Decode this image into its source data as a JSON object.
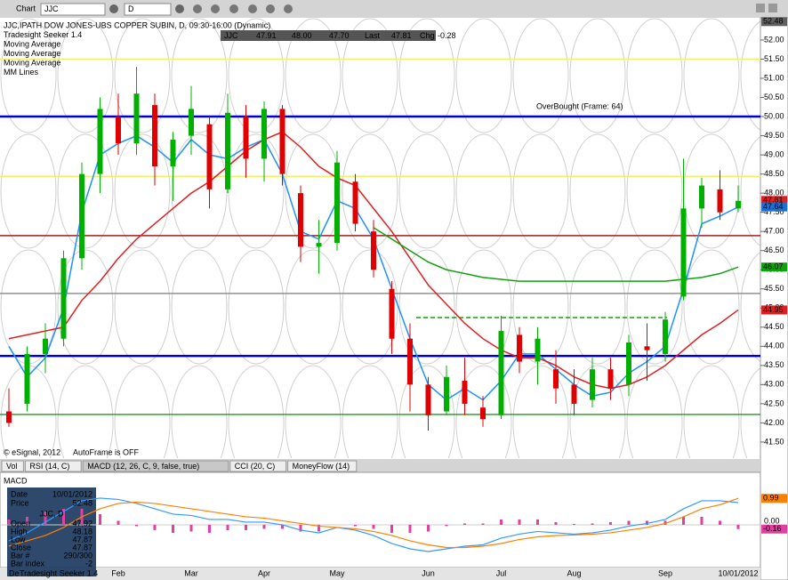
{
  "toolbar": {
    "title": "Chart",
    "symbol": "JJC",
    "interval": "D"
  },
  "header": {
    "lines": [
      "JJC,IPATH DOW JONES-UBS COPPER SUBIN, D, 09:30-16:00 (Dynamic)",
      "Tradesight Seeker 1.4",
      "Moving Average",
      "Moving Average",
      "Moving Average",
      "MM Lines"
    ],
    "quote": [
      "JJC",
      "47.91",
      "48.00",
      "47.70",
      "Last",
      "47.81",
      "Chg",
      "-0.28"
    ]
  },
  "chart_data": [
    {
      "type": "candlestick",
      "categories": [
        "De",
        null,
        null,
        null,
        null,
        null,
        "Feb",
        null,
        null,
        null,
        "Mar",
        null,
        null,
        null,
        "Apr",
        null,
        null,
        null,
        "May",
        null,
        null,
        null,
        null,
        "Jun",
        null,
        null,
        null,
        "Jul",
        null,
        null,
        null,
        "Aug",
        null,
        null,
        null,
        null,
        "Sep",
        null,
        null,
        null,
        "10/01/2012"
      ],
      "open": [
        42.3,
        42.5,
        43.8,
        44.2,
        46.3,
        48.5,
        50.0,
        49.3,
        50.3,
        48.7,
        49.5,
        49.8,
        48.1,
        50.0,
        48.9,
        50.2,
        48.0,
        46.6,
        46.7,
        48.3,
        47.0,
        45.5,
        44.2,
        43.0,
        42.3,
        43.1,
        42.4,
        42.2,
        44.3,
        43.6,
        43.4,
        43.0,
        42.6,
        43.4,
        43.0,
        44.0,
        43.8,
        45.3,
        47.6,
        48.1,
        47.6
      ],
      "high": [
        42.9,
        44.0,
        44.6,
        46.5,
        48.8,
        50.5,
        50.6,
        51.3,
        50.6,
        49.6,
        50.8,
        50.0,
        50.6,
        50.3,
        50.4,
        50.3,
        48.2,
        47.3,
        49.1,
        48.5,
        47.3,
        45.7,
        44.6,
        43.2,
        43.5,
        43.7,
        42.7,
        44.8,
        44.5,
        44.5,
        43.9,
        43.4,
        43.7,
        43.7,
        44.3,
        44.6,
        44.9,
        48.9,
        48.4,
        48.6,
        48.2
      ],
      "low": [
        41.9,
        42.3,
        43.3,
        44.0,
        46.0,
        48.0,
        49.0,
        49.0,
        48.2,
        47.8,
        49.0,
        47.6,
        48.0,
        48.4,
        48.3,
        48.2,
        46.2,
        45.9,
        46.5,
        47.0,
        45.8,
        43.8,
        42.3,
        41.8,
        42.2,
        42.2,
        41.9,
        42.1,
        43.3,
        43.0,
        42.5,
        42.2,
        42.4,
        42.6,
        42.7,
        43.1,
        43.6,
        45.2,
        47.1,
        47.3,
        47.5
      ],
      "close": [
        42.0,
        43.8,
        44.2,
        46.3,
        48.5,
        50.2,
        49.3,
        50.6,
        48.7,
        49.4,
        50.2,
        48.1,
        50.1,
        48.9,
        50.2,
        48.5,
        46.6,
        46.7,
        48.8,
        47.2,
        46.0,
        44.2,
        43.0,
        42.2,
        43.2,
        42.5,
        42.1,
        44.4,
        43.6,
        44.2,
        42.9,
        42.5,
        43.4,
        42.9,
        44.1,
        43.9,
        44.7,
        47.6,
        48.2,
        47.5,
        47.8
      ],
      "up_color": "#00b000",
      "down_color": "#e00000",
      "series": [
        {
          "name": "Moving Average",
          "color": "#1e90ff",
          "values": [
            44.0,
            43.2,
            43.7,
            45.0,
            47.5,
            49.0,
            49.3,
            49.5,
            49.2,
            48.8,
            49.4,
            49.0,
            48.9,
            49.2,
            49.4,
            48.5,
            47.0,
            46.8,
            47.8,
            47.6,
            46.8,
            45.5,
            44.2,
            43.0,
            42.6,
            42.9,
            42.6,
            43.1,
            43.8,
            43.8,
            43.4,
            43.0,
            42.7,
            42.8,
            43.3,
            43.6,
            44.0,
            45.5,
            47.2,
            47.4,
            47.64
          ]
        },
        {
          "name": "Moving Average",
          "color": "#e02020",
          "values": [
            44.2,
            44.3,
            44.4,
            44.5,
            45.2,
            45.7,
            46.3,
            46.8,
            47.2,
            47.6,
            48.0,
            48.3,
            48.7,
            49.1,
            49.4,
            49.6,
            49.2,
            48.7,
            48.4,
            48.2,
            47.6,
            47.0,
            46.3,
            45.6,
            45.1,
            44.6,
            44.2,
            43.9,
            43.7,
            43.7,
            43.5,
            43.2,
            43.0,
            42.9,
            43.0,
            43.2,
            43.5,
            43.9,
            44.3,
            44.6,
            44.95
          ]
        },
        {
          "name": "Moving Average",
          "color": "#10a010",
          "values": [
            null,
            null,
            null,
            null,
            null,
            null,
            null,
            null,
            null,
            null,
            null,
            null,
            null,
            null,
            null,
            null,
            null,
            null,
            null,
            null,
            47.1,
            46.8,
            46.5,
            46.2,
            46.0,
            45.9,
            45.8,
            45.75,
            45.7,
            45.7,
            45.7,
            45.7,
            45.7,
            45.7,
            45.7,
            45.7,
            45.7,
            45.75,
            45.8,
            45.9,
            46.07
          ]
        }
      ],
      "levels": [
        {
          "value": 51.5,
          "color": "#f0f060",
          "dashed": false
        },
        {
          "value": 50.0,
          "color": "#0000cc",
          "dashed": false
        },
        {
          "value": 48.44,
          "color": "#f0f060",
          "dashed": false
        },
        {
          "value": 46.89,
          "color": "#a02020",
          "dashed": false
        },
        {
          "value": 45.38,
          "color": "#909090",
          "dashed": false
        },
        {
          "value": 44.75,
          "color": "#10a010",
          "dashed": true
        },
        {
          "value": 43.75,
          "color": "#0000cc",
          "dashed": false
        },
        {
          "value": 42.22,
          "color": "#30a030",
          "dashed": false
        }
      ],
      "annotation": "OverBought (Frame: 64)",
      "ylim": [
        41.08,
        52.58
      ],
      "yticks": [
        {
          "value": 41.5,
          "label": "41.50"
        },
        {
          "value": 42,
          "label": "42.00"
        },
        {
          "value": 42.5,
          "label": "42.50"
        },
        {
          "value": 43,
          "label": "43.00"
        },
        {
          "value": 43.5,
          "label": "43.50"
        },
        {
          "value": 44,
          "label": "44.00"
        },
        {
          "value": 44.5,
          "label": "44.50"
        },
        {
          "value": 45,
          "label": "45.00"
        },
        {
          "value": 45.5,
          "label": "45.50"
        },
        {
          "value": 46,
          "label": "46.00"
        },
        {
          "value": 46.5,
          "label": "46.50"
        },
        {
          "value": 47,
          "label": "47.00"
        },
        {
          "value": 47.5,
          "label": "47.50"
        },
        {
          "value": 48,
          "label": "48.00"
        },
        {
          "value": 48.5,
          "label": "48.50"
        },
        {
          "value": 49,
          "label": "49.00"
        },
        {
          "value": 49.5,
          "label": "49.50"
        },
        {
          "value": 50,
          "label": "50.00"
        },
        {
          "value": 50.5,
          "label": "50.50"
        },
        {
          "value": 51,
          "label": "51.00"
        },
        {
          "value": 51.5,
          "label": "51.50"
        },
        {
          "value": 52,
          "label": "52.00"
        }
      ],
      "price_tags": [
        {
          "value": 52.48,
          "color": "#606060"
        },
        {
          "value": 47.81,
          "color": "#e02020"
        },
        {
          "value": 47.64,
          "color": "#1e70d0"
        },
        {
          "value": 46.07,
          "color": "#10a010"
        },
        {
          "value": 44.95,
          "color": "#e02020"
        }
      ],
      "notes": [
        "© eSignal, 2012",
        "AutoFrame is OFF"
      ]
    },
    {
      "type": "macd",
      "title": "MACD",
      "series": [
        {
          "name": "MACD",
          "color": "#3399ff",
          "values": [
            -0.6,
            -0.3,
            0.1,
            0.5,
            0.9,
            1.0,
            0.95,
            0.8,
            0.6,
            0.4,
            0.35,
            0.2,
            0.2,
            0.1,
            0.1,
            0.0,
            -0.2,
            -0.3,
            -0.1,
            -0.2,
            -0.4,
            -0.7,
            -0.9,
            -1.0,
            -0.9,
            -0.8,
            -0.75,
            -0.5,
            -0.35,
            -0.25,
            -0.3,
            -0.35,
            -0.3,
            -0.2,
            -0.05,
            0.05,
            0.2,
            0.6,
            0.9,
            0.9,
            0.83
          ]
        },
        {
          "name": "Signal",
          "color": "#ff8000",
          "values": [
            -0.8,
            -0.6,
            -0.4,
            -0.1,
            0.3,
            0.6,
            0.8,
            0.85,
            0.8,
            0.7,
            0.6,
            0.5,
            0.4,
            0.3,
            0.25,
            0.15,
            0.05,
            -0.05,
            -0.1,
            -0.15,
            -0.25,
            -0.4,
            -0.6,
            -0.75,
            -0.85,
            -0.85,
            -0.8,
            -0.7,
            -0.55,
            -0.45,
            -0.4,
            -0.38,
            -0.35,
            -0.3,
            -0.2,
            -0.1,
            0.05,
            0.3,
            0.6,
            0.75,
            0.99
          ]
        }
      ],
      "histogram": {
        "color": "#e040a0",
        "values": [
          0.2,
          0.3,
          0.5,
          0.6,
          0.6,
          0.4,
          0.15,
          -0.05,
          -0.2,
          -0.3,
          -0.25,
          -0.3,
          -0.2,
          -0.2,
          -0.15,
          -0.15,
          -0.25,
          -0.25,
          0.0,
          -0.05,
          -0.15,
          -0.3,
          -0.3,
          -0.25,
          -0.05,
          0.05,
          0.05,
          0.2,
          0.2,
          0.2,
          0.1,
          0.03,
          0.05,
          0.1,
          0.15,
          0.15,
          0.15,
          0.3,
          0.3,
          0.15,
          -0.16
        ]
      },
      "ylim": [
        -1.6,
        1.93
      ],
      "yticks": [
        {
          "value": 0,
          "label": "0.00"
        }
      ],
      "price_tags": [
        {
          "value": 0.99,
          "color": "#ff8000"
        },
        {
          "value": -0.16,
          "color": "#e040a0"
        }
      ]
    }
  ],
  "tabs": [
    "Vol",
    "RSI (14, C)",
    "MACD (12, 26, C, 9, false, true)",
    "CCI (20, C)",
    "MoneyFlow (14)"
  ],
  "data_window": {
    "rows": [
      [
        "Date",
        "10/01/2012"
      ],
      [
        "Price",
        "52.48"
      ]
    ],
    "symbol": "JJC, D",
    "ohlc": [
      [
        "Open",
        "47.92"
      ],
      [
        "High",
        "48.18"
      ],
      [
        "Low",
        "47.87"
      ],
      [
        "Close",
        "47.87"
      ],
      [
        "Bar #",
        "290/300"
      ],
      [
        "Bar index",
        "-2"
      ]
    ],
    "study": "Tradesight Seeker 1.4"
  }
}
